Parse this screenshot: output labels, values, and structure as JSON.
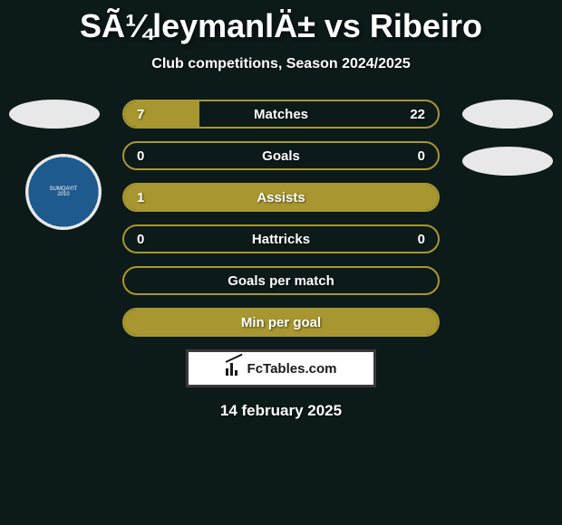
{
  "header": {
    "title": "SÃ¼leymanlÄ± vs Ribeiro",
    "subtitle": "Club competitions, Season 2024/2025"
  },
  "club_badge": {
    "name": "SUMQAYIT",
    "year": "2010",
    "subtitle": "Futbol Klubu",
    "bg_color": "#1e5a8e",
    "ring_color": "#e8e8e8"
  },
  "stats": [
    {
      "label": "Matches",
      "left_value": "7",
      "right_value": "22",
      "bar_color": "#a89730",
      "border_color": "#a89730",
      "fill_percent": 24,
      "fill_mode": "partial",
      "show_values": true
    },
    {
      "label": "Goals",
      "left_value": "0",
      "right_value": "0",
      "bar_color": "#a89730",
      "border_color": "#a89730",
      "fill_percent": 0,
      "fill_mode": "none",
      "show_values": true
    },
    {
      "label": "Assists",
      "left_value": "1",
      "right_value": "",
      "bar_color": "#a89730",
      "border_color": "#a89730",
      "fill_percent": 100,
      "fill_mode": "full",
      "show_values": true
    },
    {
      "label": "Hattricks",
      "left_value": "0",
      "right_value": "0",
      "bar_color": "#a89730",
      "border_color": "#a89730",
      "fill_percent": 0,
      "fill_mode": "none",
      "show_values": true
    },
    {
      "label": "Goals per match",
      "left_value": "",
      "right_value": "",
      "bar_color": "#a89730",
      "border_color": "#a89730",
      "fill_percent": 0,
      "fill_mode": "none",
      "show_values": false
    },
    {
      "label": "Min per goal",
      "left_value": "",
      "right_value": "",
      "bar_color": "#a89730",
      "border_color": "#a89730",
      "fill_percent": 100,
      "fill_mode": "full",
      "show_values": false
    }
  ],
  "footer": {
    "brand": "FcTables.com",
    "date": "14 february 2025"
  },
  "colors": {
    "background": "#0d1a1a",
    "oval": "#e8e8e8",
    "bar_olive": "#a89730",
    "text": "#ffffff"
  }
}
